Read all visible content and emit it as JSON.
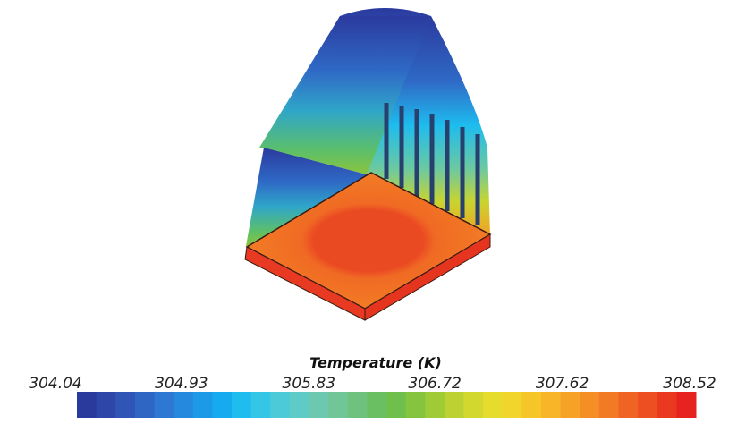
{
  "chart_data": {
    "type": "colorbar",
    "title": "Temperature (K)",
    "xlim": [
      304.04,
      308.52
    ],
    "xticks": [
      304.04,
      304.93,
      305.83,
      306.72,
      307.62,
      308.52
    ],
    "colors": [
      "#2a3a9c",
      "#2d46a8",
      "#2f55b6",
      "#2f66c4",
      "#2c78d2",
      "#2589de",
      "#1c9ae8",
      "#16abef",
      "#1ebcef",
      "#34c6e6",
      "#4ccad8",
      "#5ecbc6",
      "#6cc9b0",
      "#71c697",
      "#6ec27d",
      "#6abf63",
      "#6fbf4d",
      "#84c43f",
      "#9fcb37",
      "#bbd232",
      "#d3d82f",
      "#e6dc2d",
      "#f2d52b",
      "#f6c629",
      "#f7b527",
      "#f6a226",
      "#f48e25",
      "#f27a24",
      "#f06423",
      "#ed4e22",
      "#ea3821",
      "#e6231f"
    ]
  }
}
